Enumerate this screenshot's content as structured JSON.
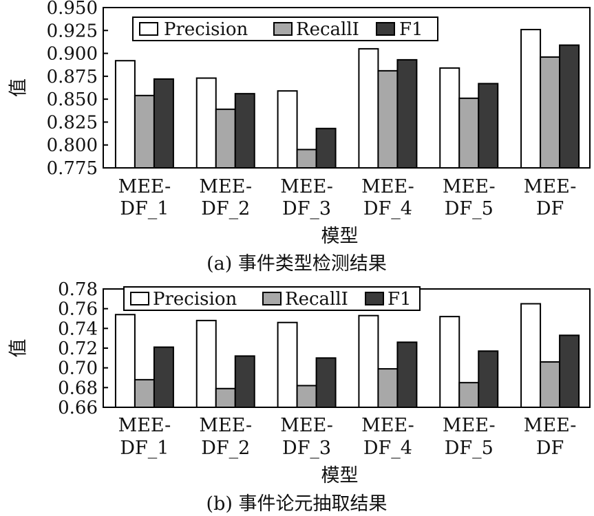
{
  "series_styles": [
    {
      "name": "Precision",
      "fill": "#ffffff"
    },
    {
      "name": "RecallI",
      "fill": "#a8a8a8"
    },
    {
      "name": "F1",
      "fill": "#3a3a3a"
    }
  ],
  "chart_data": [
    {
      "type": "bar",
      "caption": "(a) 事件类型检测结果",
      "xlabel": "模型",
      "ylabel": "值",
      "categories": [
        [
          "MEE-",
          "DF_1"
        ],
        [
          "MEE-",
          "DF_2"
        ],
        [
          "MEE-",
          "DF_3"
        ],
        [
          "MEE-",
          "DF_4"
        ],
        [
          "MEE-",
          "DF_5"
        ],
        [
          "MEE-",
          "DF"
        ]
      ],
      "ylim": [
        0.775,
        0.95
      ],
      "yticks": [
        "0.950",
        "0.925",
        "0.900",
        "0.875",
        "0.850",
        "0.825",
        "0.800",
        "0.775"
      ],
      "legend_position": "top-left",
      "legend": [
        "Precision",
        "RecallI",
        "F1"
      ],
      "series": [
        {
          "name": "Precision",
          "values": [
            0.892,
            0.873,
            0.859,
            0.905,
            0.884,
            0.926
          ]
        },
        {
          "name": "RecallI",
          "values": [
            0.854,
            0.839,
            0.795,
            0.881,
            0.851,
            0.896
          ]
        },
        {
          "name": "F1",
          "values": [
            0.872,
            0.856,
            0.818,
            0.893,
            0.867,
            0.909
          ]
        }
      ]
    },
    {
      "type": "bar",
      "caption": "(b) 事件论元抽取结果",
      "xlabel": "模型",
      "ylabel": "值",
      "categories": [
        [
          "MEE-",
          "DF_1"
        ],
        [
          "MEE-",
          "DF_2"
        ],
        [
          "MEE-",
          "DF_3"
        ],
        [
          "MEE-",
          "DF_4"
        ],
        [
          "MEE-",
          "DF_5"
        ],
        [
          "MEE-",
          "DF"
        ]
      ],
      "ylim": [
        0.66,
        0.78
      ],
      "yticks": [
        "0.78",
        "0.76",
        "0.74",
        "0.72",
        "0.70",
        "0.68",
        "0.66"
      ],
      "legend_position": "top-left",
      "legend": [
        "Precision",
        "RecallI",
        "F1"
      ],
      "series": [
        {
          "name": "Precision",
          "values": [
            0.754,
            0.748,
            0.746,
            0.753,
            0.752,
            0.765
          ]
        },
        {
          "name": "RecallI",
          "values": [
            0.688,
            0.679,
            0.682,
            0.699,
            0.685,
            0.706
          ]
        },
        {
          "name": "F1",
          "values": [
            0.721,
            0.712,
            0.71,
            0.726,
            0.717,
            0.733
          ]
        }
      ]
    }
  ]
}
